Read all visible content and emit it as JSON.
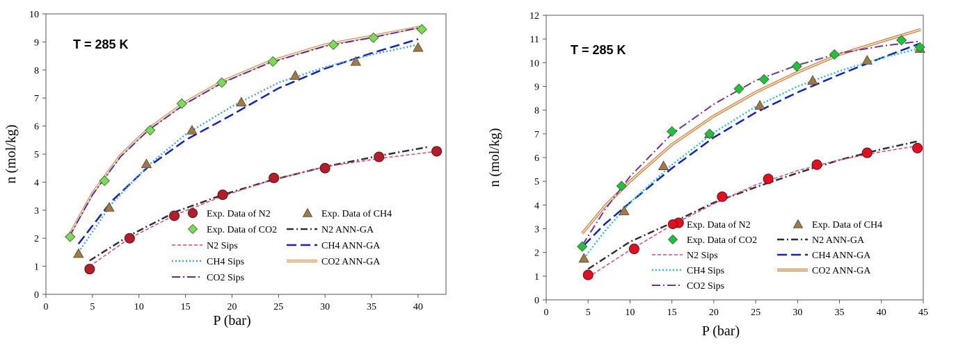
{
  "chart_data": [
    {
      "type": "scatter",
      "annotation": "T = 285 K",
      "xlabel": "P (bar)",
      "ylabel": "n (mol/kg)",
      "xlim": [
        0,
        43
      ],
      "ylim": [
        0,
        10
      ],
      "xticks": [
        0,
        5,
        10,
        15,
        20,
        25,
        30,
        35,
        40
      ],
      "yticks": [
        0,
        1,
        2,
        3,
        4,
        5,
        6,
        7,
        8,
        9,
        10
      ],
      "grid": false,
      "legend_position": "bottom-center",
      "series": [
        {
          "name": "Exp. Data of N2",
          "kind": "marker",
          "marker": "circle",
          "color": "#b0202a",
          "x": [
            4.7,
            9.0,
            13.8,
            19.0,
            24.5,
            30.0,
            35.8,
            42.0
          ],
          "y": [
            0.9,
            2.0,
            2.8,
            3.55,
            4.15,
            4.5,
            4.9,
            5.1
          ]
        },
        {
          "name": "Exp. Data of CH4",
          "kind": "marker",
          "marker": "triangle",
          "color": "#9e7a4a",
          "x": [
            3.5,
            6.8,
            10.8,
            15.7,
            21.0,
            26.8,
            33.3,
            40.0
          ],
          "y": [
            1.45,
            3.1,
            4.65,
            5.85,
            6.85,
            7.8,
            8.3,
            8.8
          ]
        },
        {
          "name": "Exp. Data of CO2",
          "kind": "marker",
          "marker": "diamond",
          "color": "#7ed957",
          "x": [
            2.6,
            6.3,
            11.2,
            14.6,
            18.9,
            24.4,
            30.9,
            35.2,
            40.4
          ],
          "y": [
            2.05,
            4.05,
            5.85,
            6.8,
            7.55,
            8.3,
            8.9,
            9.15,
            9.45
          ]
        },
        {
          "name": "N2 ANN-GA",
          "kind": "line",
          "dash": "10 4 2 4",
          "color": "#303030",
          "width": 2.5,
          "x": [
            4.7,
            9,
            14,
            19,
            24,
            30,
            36,
            41
          ],
          "y": [
            1.2,
            2.1,
            2.95,
            3.55,
            4.05,
            4.55,
            4.95,
            5.25
          ]
        },
        {
          "name": "N2 Sips",
          "kind": "line",
          "dash": "5 3",
          "color": "#e0407a",
          "width": 1.5,
          "x": [
            4.7,
            9,
            14,
            19,
            24,
            30,
            36,
            42
          ],
          "y": [
            1.0,
            2.0,
            2.85,
            3.5,
            4.05,
            4.55,
            4.85,
            5.1
          ]
        },
        {
          "name": "CH4 ANN-GA",
          "kind": "line",
          "dash": "14 6",
          "color": "#1020c8",
          "width": 2.5,
          "x": [
            3.5,
            7,
            11,
            15,
            20,
            25,
            30,
            35,
            40
          ],
          "y": [
            1.8,
            3.3,
            4.55,
            5.5,
            6.4,
            7.35,
            8.05,
            8.6,
            9.1
          ]
        },
        {
          "name": "CH4 Sips",
          "kind": "line",
          "dash": "2 3",
          "color": "#40a0e8",
          "width": 2.5,
          "x": [
            3.5,
            7,
            11,
            15,
            20,
            25,
            30,
            35,
            40
          ],
          "y": [
            1.5,
            3.2,
            4.6,
            5.7,
            6.7,
            7.55,
            8.1,
            8.55,
            8.9
          ]
        },
        {
          "name": "CO2 ANN-GA",
          "kind": "line",
          "style": "double",
          "color": "#d9955a",
          "width": 2.5,
          "x": [
            2.5,
            5,
            8,
            11,
            15,
            19,
            24,
            30,
            35,
            40.5
          ],
          "y": [
            2.1,
            3.6,
            4.95,
            5.9,
            6.85,
            7.6,
            8.3,
            8.9,
            9.2,
            9.55
          ]
        },
        {
          "name": "CO2 Sips",
          "kind": "line",
          "dash": "12 4 2 4",
          "color": "#5a2a9a",
          "width": 2,
          "x": [
            2.5,
            5,
            8,
            11,
            15,
            19,
            24,
            30,
            35,
            40
          ],
          "y": [
            2.05,
            3.55,
            4.9,
            5.85,
            6.8,
            7.55,
            8.25,
            8.85,
            9.15,
            9.5
          ]
        }
      ]
    },
    {
      "type": "scatter",
      "annotation": "T = 285 K",
      "xlabel": "P (bar)",
      "ylabel": "n (mol/kg)",
      "xlim": [
        0,
        45
      ],
      "ylim": [
        0,
        12
      ],
      "xticks": [
        0,
        5,
        10,
        15,
        20,
        25,
        30,
        35,
        40,
        45
      ],
      "yticks": [
        0,
        1,
        2,
        3,
        4,
        5,
        6,
        7,
        8,
        9,
        10,
        11,
        12
      ],
      "grid": false,
      "legend_position": "bottom-center",
      "series": [
        {
          "name": "Exp. Data of N2",
          "kind": "marker",
          "marker": "circle",
          "color": "#e01020",
          "x": [
            5.0,
            10.5,
            15.8,
            21.0,
            26.5,
            32.3,
            38.3,
            44.3
          ],
          "y": [
            1.05,
            2.15,
            3.25,
            4.35,
            5.1,
            5.7,
            6.2,
            6.4
          ]
        },
        {
          "name": "Exp. Data of CH4",
          "kind": "marker",
          "marker": "triangle",
          "color": "#9e7a4a",
          "x": [
            4.5,
            9.3,
            14.0,
            19.5,
            25.5,
            31.8,
            38.3,
            44.6
          ],
          "y": [
            1.75,
            3.75,
            5.65,
            7.0,
            8.2,
            9.25,
            10.1,
            10.6
          ]
        },
        {
          "name": "Exp. Data of CO2",
          "kind": "marker",
          "marker": "diamond",
          "color": "#20c040",
          "x": [
            4.3,
            9.0,
            15.0,
            19.5,
            23.0,
            26.0,
            29.9,
            34.4,
            42.4,
            44.6
          ],
          "y": [
            2.25,
            4.8,
            7.1,
            7.0,
            8.9,
            9.3,
            9.85,
            10.35,
            10.95,
            10.65
          ]
        },
        {
          "name": "N2 ANN-GA",
          "kind": "line",
          "dash": "10 4 2 4",
          "color": "#303030",
          "width": 2.5,
          "x": [
            5,
            10,
            15,
            20,
            25,
            30,
            35,
            40,
            44.5
          ],
          "y": [
            1.3,
            2.45,
            3.25,
            4.1,
            4.75,
            5.35,
            5.9,
            6.35,
            6.7
          ]
        },
        {
          "name": "N2 Sips",
          "kind": "line",
          "dash": "5 3",
          "color": "#e0407a",
          "width": 1.5,
          "x": [
            5,
            10,
            15,
            20,
            25,
            30,
            35,
            40,
            44.5
          ],
          "y": [
            0.95,
            2.1,
            3.15,
            4.05,
            4.85,
            5.45,
            5.9,
            6.25,
            6.5
          ]
        },
        {
          "name": "CH4 ANN-GA",
          "kind": "line",
          "dash": "14 6",
          "color": "#1020c8",
          "width": 2.5,
          "x": [
            4.5,
            7,
            10,
            15,
            20,
            25,
            30,
            35,
            40,
            44.5
          ],
          "y": [
            2.3,
            3.2,
            4.1,
            5.55,
            6.85,
            7.9,
            8.75,
            9.5,
            10.2,
            10.8
          ]
        },
        {
          "name": "CH4 Sips",
          "kind": "line",
          "dash": "2 3",
          "color": "#20c0e0",
          "width": 2.5,
          "x": [
            4.5,
            7,
            10,
            15,
            20,
            25,
            30,
            35,
            40,
            44.5
          ],
          "y": [
            1.75,
            2.9,
            4.1,
            5.7,
            7.05,
            8.15,
            9.0,
            9.65,
            10.2,
            10.6
          ]
        },
        {
          "name": "CO2 ANN-GA",
          "kind": "line",
          "style": "double",
          "color": "#e07a30",
          "width": 2.5,
          "x": [
            4.3,
            7,
            10,
            15,
            20,
            25,
            30,
            35,
            40,
            44.7
          ],
          "y": [
            2.8,
            3.95,
            5.0,
            6.55,
            7.75,
            8.75,
            9.6,
            10.35,
            10.9,
            11.4
          ]
        },
        {
          "name": "CO2 Sips",
          "kind": "line",
          "dash": "12 4 2 4",
          "color": "#7030a0",
          "width": 2,
          "x": [
            4.3,
            7,
            10,
            15,
            20,
            25,
            30,
            35,
            40,
            44.5
          ],
          "y": [
            2.3,
            3.8,
            5.2,
            7.0,
            8.25,
            9.25,
            9.9,
            10.4,
            10.7,
            10.9
          ]
        }
      ]
    }
  ]
}
